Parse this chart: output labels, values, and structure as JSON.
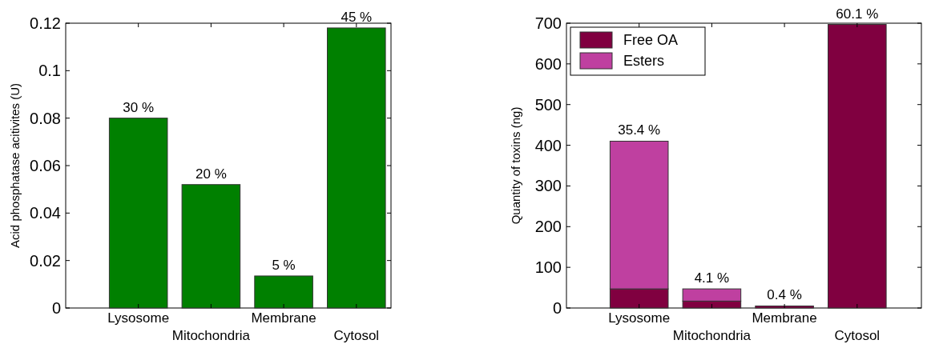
{
  "chart_data": [
    {
      "type": "bar",
      "ylabel": "Acid phosphatase acitivites (U)",
      "categories": [
        "Lysosome",
        "Mitochondria",
        "Membrane",
        "Cytosol"
      ],
      "values": [
        0.08,
        0.052,
        0.0135,
        0.118
      ],
      "color": "#008000",
      "ylim": [
        0,
        0.12
      ],
      "yticks": [
        0,
        0.02,
        0.04,
        0.06,
        0.08,
        0.1,
        0.12
      ],
      "annotations": [
        {
          "text": "30 %",
          "x": "Lysosome",
          "y": 0.08
        },
        {
          "text": "20 %",
          "x": "Mitochondria",
          "y": 0.052
        },
        {
          "text": "5 %",
          "x": "Membrane",
          "y": 0.0135
        },
        {
          "text": "45 %",
          "x": "Cytosol",
          "y": 0.118
        }
      ]
    },
    {
      "type": "bar",
      "ylabel": "Quantity of toxins (ng)",
      "categories": [
        "Lysosome",
        "Mitochondria",
        "Membrane",
        "Cytosol"
      ],
      "stacked": true,
      "legend": "top left",
      "series": [
        {
          "name": "Free OA",
          "color": "#800040",
          "values": [
            47,
            17,
            5,
            697
          ]
        },
        {
          "name": "Esters",
          "color": "#bf40a0",
          "values": [
            363,
            30,
            null,
            null
          ]
        }
      ],
      "ylim": [
        0,
        700
      ],
      "yticks": [
        0,
        100,
        200,
        300,
        400,
        500,
        600,
        700
      ],
      "annotations": [
        {
          "text": "35.4 %",
          "x": "Lysosome",
          "y": 410
        },
        {
          "text": "4.1 %",
          "x": "Mitochondria",
          "y": 47
        },
        {
          "text": "0.4 %",
          "x": "Membrane",
          "y": 5
        },
        {
          "text": "60.1 %",
          "x": "Cytosol",
          "y": 697
        }
      ]
    }
  ]
}
